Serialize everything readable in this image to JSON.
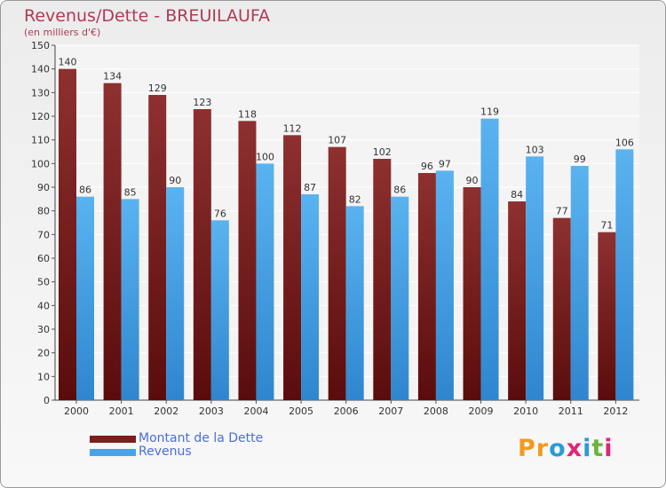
{
  "chart_data": {
    "type": "bar",
    "title": "Revenus/Dette - BREUILAUFA",
    "subtitle": "(en milliers d'€)",
    "categories": [
      "2000",
      "2001",
      "2002",
      "2003",
      "2004",
      "2005",
      "2006",
      "2007",
      "2008",
      "2009",
      "2010",
      "2011",
      "2012"
    ],
    "series": [
      {
        "name": "Montant de la Dette",
        "color": "#7a1e1e",
        "values": [
          140,
          134,
          129,
          123,
          118,
          112,
          107,
          102,
          96,
          90,
          84,
          77,
          71
        ]
      },
      {
        "name": "Revenus",
        "color": "#4aa3e8",
        "values": [
          86,
          85,
          90,
          76,
          100,
          87,
          82,
          86,
          97,
          119,
          103,
          99,
          106
        ]
      }
    ],
    "ylim": [
      0,
      150
    ],
    "yticks": [
      0,
      10,
      20,
      30,
      40,
      50,
      60,
      70,
      80,
      90,
      100,
      110,
      120,
      130,
      140,
      150
    ],
    "grid": true,
    "legend_position": "bottom-left"
  },
  "legend": {
    "items": [
      {
        "label": "Montant de la Dette",
        "color": "#7a1e1e"
      },
      {
        "label": "Revenus",
        "color": "#4aa3e8"
      }
    ]
  },
  "branding": {
    "logo_text": "Proxiti",
    "letter_colors": [
      "#f29a1f",
      "#f29a1f",
      "#2a9bd6",
      "#e0267a",
      "#2a9bd6",
      "#6cb33e",
      "#e0267a"
    ]
  }
}
